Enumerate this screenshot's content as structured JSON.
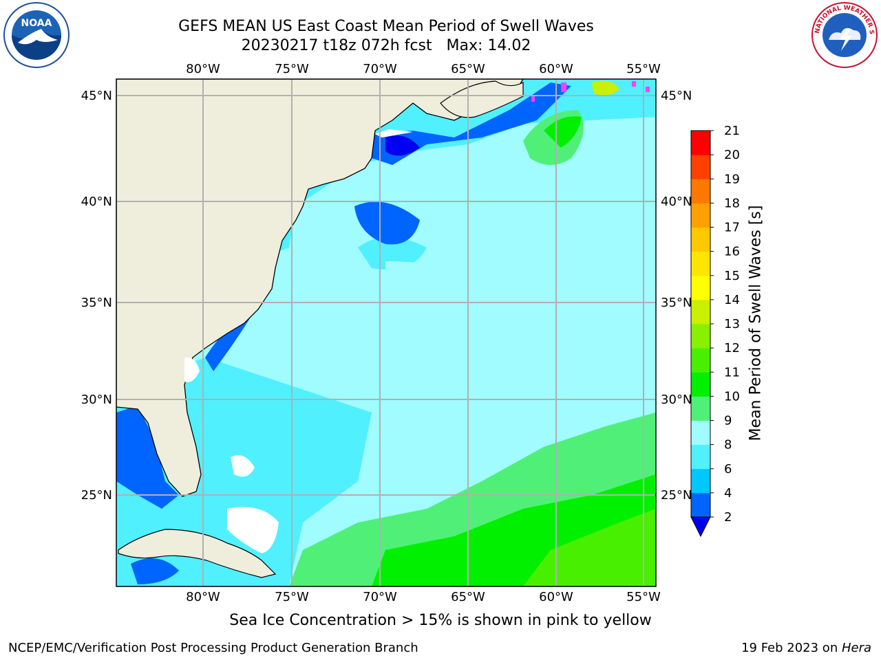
{
  "header": {
    "title_line1": "GEFS MEAN US East Coast Mean Period of Swell Waves",
    "title_line2": "20230217 t18z 072h fcst   Max: 14.02"
  },
  "logos": {
    "left": "NOAA",
    "right_ring": "NATIONAL WEATHER SERVICE"
  },
  "map": {
    "lon_labels": [
      "80°W",
      "75°W",
      "70°W",
      "65°W",
      "60°W",
      "55°W"
    ],
    "lat_labels": [
      "45°N",
      "40°N",
      "35°N",
      "30°N",
      "25°N"
    ],
    "land_color": "#efeedd",
    "grid_color": "#b0b0b0"
  },
  "colorbar": {
    "label": "Mean Period of Swell Waves [s]",
    "ticks": [
      "2",
      "4",
      "6",
      "8",
      "9",
      "10",
      "11",
      "12",
      "13",
      "14",
      "15",
      "16",
      "17",
      "18",
      "19",
      "20",
      "21"
    ],
    "colors": [
      "#0064ff",
      "#00c8ff",
      "#50f0ff",
      "#a0fcff",
      "#50f078",
      "#00f000",
      "#48f000",
      "#88f000",
      "#c8f000",
      "#ffff00",
      "#ffe600",
      "#ffc800",
      "#ffa000",
      "#ff7800",
      "#ff4000",
      "#ff0000"
    ],
    "under_color": "#0000f0"
  },
  "note": "Sea Ice Concentration > 15% is shown in pink to yellow",
  "footer": {
    "left": "NCEP/EMC/Verification Post Processing Product Generation Branch",
    "right_date": "19 Feb 2023 on ",
    "right_host": "Hera"
  }
}
